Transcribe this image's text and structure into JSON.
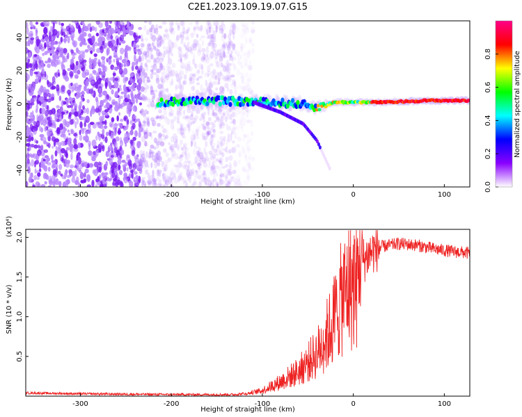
{
  "title": "C2E1.2023.109.19.07.G15",
  "colors": {
    "line": "#ee2222",
    "axis": "#000000",
    "background": "#ffffff"
  },
  "chart_data": [
    {
      "type": "heatmap",
      "xlabel": "Height of straight line (km)",
      "ylabel": "Frequency (Hz)",
      "xlim": [
        -360,
        128
      ],
      "ylim": [
        -50,
        50
      ],
      "xticks": [
        -300,
        -200,
        -100,
        0,
        100
      ],
      "yticks": [
        -40,
        -20,
        0,
        20,
        40
      ],
      "colorbar": {
        "label": "Normalized spectral amplitude",
        "ticks": [
          0.0,
          0.2,
          0.4,
          0.6,
          0.8
        ],
        "colormap": [
          "#ffffff",
          "#8a00ff",
          "#0000ff",
          "#00ffff",
          "#00ff00",
          "#ffff00",
          "#ff0000",
          "#ff0088"
        ]
      },
      "features": {
        "noise_dots_x_range": [
          -360,
          -130
        ],
        "carrier": [
          [
            -215,
            1
          ],
          [
            -160,
            2
          ],
          [
            -100,
            1
          ],
          [
            -60,
            0
          ],
          [
            -40,
            -2
          ],
          [
            -20,
            1
          ],
          [
            0,
            1
          ],
          [
            40,
            1
          ],
          [
            80,
            2
          ],
          [
            128,
            2
          ]
        ],
        "branch": [
          [
            -110,
            1
          ],
          [
            -80,
            -5
          ],
          [
            -55,
            -12
          ],
          [
            -40,
            -22
          ],
          [
            -25,
            -40
          ]
        ]
      }
    },
    {
      "type": "line",
      "xlabel": "Height of straight line (km)",
      "ylabel": "SNR (10 * v/v)",
      "yscale_label": "(x10⁴)",
      "xlim": [
        -360,
        128
      ],
      "ylim": [
        0,
        2.1
      ],
      "xticks": [
        -300,
        -200,
        -100,
        0,
        100
      ],
      "yticks": [
        0.5,
        1.0,
        1.5,
        2.0
      ],
      "ytick_labels": [
        "0.5",
        "1.0",
        "1.5",
        "2.0"
      ],
      "trend": {
        "x": [
          -360,
          -300,
          -200,
          -130,
          -115,
          -100,
          -80,
          -60,
          -40,
          -25,
          -15,
          -5,
          0,
          10,
          20,
          30,
          50,
          70,
          90,
          110,
          128
        ],
        "y": [
          0.04,
          0.03,
          0.02,
          0.02,
          0.04,
          0.08,
          0.2,
          0.35,
          0.6,
          0.95,
          1.3,
          1.55,
          1.55,
          1.7,
          1.82,
          1.88,
          1.92,
          1.9,
          1.85,
          1.82,
          1.8
        ]
      }
    }
  ]
}
